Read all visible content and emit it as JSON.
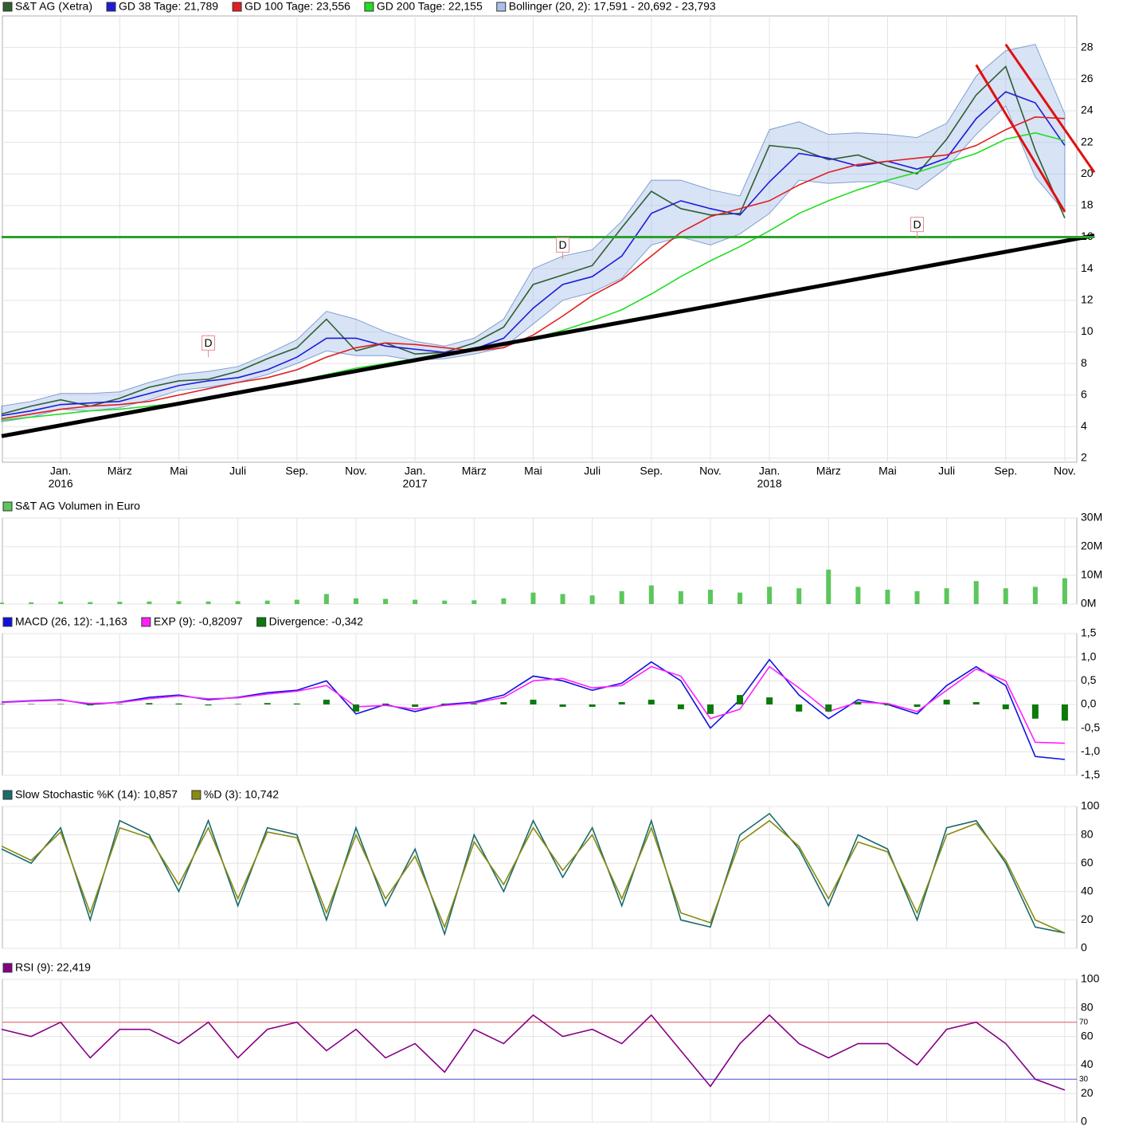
{
  "chart_data": [
    {
      "type": "line",
      "xlim": [
        "2015-11",
        "2018-12"
      ],
      "x": [
        "2015-11",
        "2015-12",
        "2016-01",
        "2016-02",
        "2016-03",
        "2016-04",
        "2016-05",
        "2016-06",
        "2016-07",
        "2016-08",
        "2016-09",
        "2016-10",
        "2016-11",
        "2016-12",
        "2017-01",
        "2017-02",
        "2017-03",
        "2017-04",
        "2017-05",
        "2017-06",
        "2017-07",
        "2017-08",
        "2017-09",
        "2017-10",
        "2017-11",
        "2017-12",
        "2018-01",
        "2018-02",
        "2018-03",
        "2018-04",
        "2018-05",
        "2018-06",
        "2018-07",
        "2018-08",
        "2018-09",
        "2018-10",
        "2018-11"
      ],
      "xticks": [
        {
          "value": "2016-01",
          "label": "Jan."
        },
        {
          "value": "2016-03",
          "label": "März"
        },
        {
          "value": "2016-05",
          "label": "Mai"
        },
        {
          "value": "2016-07",
          "label": "Juli"
        },
        {
          "value": "2016-09",
          "label": "Sep."
        },
        {
          "value": "2016-11",
          "label": "Nov."
        },
        {
          "value": "2017-01",
          "label": "Jan."
        },
        {
          "value": "2017-03",
          "label": "März"
        },
        {
          "value": "2017-05",
          "label": "Mai"
        },
        {
          "value": "2017-07",
          "label": "Juli"
        },
        {
          "value": "2017-09",
          "label": "Sep."
        },
        {
          "value": "2017-11",
          "label": "Nov."
        },
        {
          "value": "2018-01",
          "label": "Jan."
        },
        {
          "value": "2018-03",
          "label": "März"
        },
        {
          "value": "2018-05",
          "label": "Mai"
        },
        {
          "value": "2018-07",
          "label": "Juli"
        },
        {
          "value": "2018-09",
          "label": "Sep."
        },
        {
          "value": "2018-11",
          "label": "Nov."
        }
      ],
      "year_ticks": [
        {
          "value": "2016-01",
          "label": "2016"
        },
        {
          "value": "2017-01",
          "label": "2017"
        },
        {
          "value": "2018-01",
          "label": "2018"
        }
      ],
      "ylim": [
        1.75,
        30
      ],
      "yticks": [
        2,
        4,
        6,
        8,
        10,
        12,
        14,
        16,
        18,
        20,
        22,
        24,
        26,
        28
      ],
      "band": {
        "name": "Bollinger (20, 2): 17,591 - 20,692 - 23,793",
        "color": "#a9c1ea",
        "upper": [
          5.3,
          5.6,
          6.1,
          6.1,
          6.2,
          6.8,
          7.3,
          7.5,
          7.8,
          8.6,
          9.5,
          11.3,
          10.8,
          10.0,
          9.4,
          9.1,
          9.6,
          10.8,
          14.0,
          14.8,
          15.2,
          17.0,
          19.6,
          19.6,
          19.0,
          18.6,
          22.8,
          23.3,
          22.5,
          22.6,
          22.5,
          22.3,
          23.2,
          26.2,
          27.8,
          28.2,
          23.8
        ],
        "lower": [
          4.3,
          4.6,
          5.1,
          5.0,
          5.2,
          5.7,
          6.3,
          6.5,
          6.8,
          7.3,
          8.0,
          8.8,
          8.5,
          8.5,
          8.2,
          8.3,
          8.6,
          9.0,
          10.5,
          12.0,
          12.5,
          13.4,
          15.5,
          16.0,
          15.5,
          16.2,
          17.5,
          19.6,
          19.4,
          19.5,
          19.5,
          19.0,
          20.4,
          22.5,
          24.3,
          19.8,
          17.6
        ]
      },
      "series": [
        {
          "name": "S&T AG (Xetra)",
          "color": "#2f5f2f",
          "values": [
            4.8,
            5.3,
            5.7,
            5.3,
            5.8,
            6.5,
            6.9,
            7.0,
            7.5,
            8.3,
            9.0,
            10.8,
            8.8,
            9.3,
            8.6,
            8.7,
            9.3,
            10.3,
            13.0,
            13.6,
            14.2,
            16.6,
            18.9,
            17.8,
            17.4,
            17.5,
            21.8,
            21.6,
            20.9,
            21.2,
            20.5,
            20.0,
            22.2,
            25.0,
            26.8,
            21.5,
            17.2
          ]
        },
        {
          "name": "GD 38 Tage: 21,789",
          "color": "#1c1cd8",
          "values": [
            4.7,
            5.0,
            5.4,
            5.5,
            5.6,
            6.1,
            6.6,
            6.9,
            7.1,
            7.6,
            8.4,
            9.6,
            9.6,
            9.1,
            8.9,
            8.7,
            8.9,
            9.6,
            11.5,
            13.0,
            13.5,
            14.8,
            17.5,
            18.3,
            17.8,
            17.4,
            19.5,
            21.3,
            21.0,
            20.5,
            20.8,
            20.3,
            21.0,
            23.5,
            25.2,
            24.5,
            21.8
          ]
        },
        {
          "name": "GD 100 Tage: 23,556",
          "color": "#e02020",
          "values": [
            4.5,
            4.8,
            5.1,
            5.3,
            5.4,
            5.6,
            6.0,
            6.4,
            6.8,
            7.1,
            7.6,
            8.4,
            9.0,
            9.3,
            9.2,
            9.0,
            8.8,
            9.0,
            9.8,
            11.0,
            12.3,
            13.3,
            14.8,
            16.3,
            17.3,
            17.8,
            18.3,
            19.3,
            20.1,
            20.6,
            20.8,
            21.0,
            21.2,
            21.8,
            22.8,
            23.6,
            23.5
          ]
        },
        {
          "name": "GD 200 Tage: 22,155",
          "color": "#22dd22",
          "values": [
            4.4,
            4.6,
            4.8,
            5.0,
            5.1,
            5.3,
            5.5,
            5.8,
            6.1,
            6.5,
            6.9,
            7.3,
            7.7,
            8.0,
            8.3,
            8.6,
            8.9,
            9.2,
            9.6,
            10.1,
            10.7,
            11.4,
            12.4,
            13.5,
            14.5,
            15.4,
            16.4,
            17.5,
            18.3,
            19.0,
            19.6,
            20.1,
            20.7,
            21.3,
            22.2,
            22.6,
            22.1
          ]
        }
      ],
      "trendlines": [
        {
          "color": "#000000",
          "width": 5,
          "x": [
            "2015-11",
            "2018-12"
          ],
          "y": [
            3.4,
            16.1
          ]
        },
        {
          "color": "#2ca02c",
          "width": 3,
          "x": [
            "2015-11",
            "2018-12"
          ],
          "y": [
            16,
            16
          ]
        },
        {
          "color": "#e01010",
          "width": 3,
          "x": [
            "2018-09",
            "2018-12"
          ],
          "y": [
            28.2,
            20.1
          ]
        },
        {
          "color": "#e01010",
          "width": 3,
          "x": [
            "2018-08",
            "2018-11"
          ],
          "y": [
            26.9,
            17.6
          ]
        }
      ],
      "annotations": [
        {
          "x": "2016-06",
          "y": 9.3,
          "label": "D"
        },
        {
          "x": "2017-06",
          "y": 15.5,
          "label": "D"
        },
        {
          "x": "2018-06",
          "y": 16.8,
          "label": "D"
        }
      ]
    },
    {
      "type": "bar",
      "x": [
        "2015-11",
        "2015-12",
        "2016-01",
        "2016-02",
        "2016-03",
        "2016-04",
        "2016-05",
        "2016-06",
        "2016-07",
        "2016-08",
        "2016-09",
        "2016-10",
        "2016-11",
        "2016-12",
        "2017-01",
        "2017-02",
        "2017-03",
        "2017-04",
        "2017-05",
        "2017-06",
        "2017-07",
        "2017-08",
        "2017-09",
        "2017-10",
        "2017-11",
        "2017-12",
        "2018-01",
        "2018-02",
        "2018-03",
        "2018-04",
        "2018-05",
        "2018-06",
        "2018-07",
        "2018-08",
        "2018-09",
        "2018-10",
        "2018-11"
      ],
      "ylim": [
        0,
        30000000
      ],
      "yticks": [
        {
          "value": 0,
          "label": "0M"
        },
        {
          "value": 10000000,
          "label": "10M"
        },
        {
          "value": 20000000,
          "label": "20M"
        },
        {
          "value": 30000000,
          "label": "30M"
        }
      ],
      "series": [
        {
          "name": "S&T AG Volumen in Euro",
          "color": "#5cc65c",
          "values": [
            500000,
            600000,
            800000,
            700000,
            800000,
            900000,
            1000000,
            900000,
            1000000,
            1200000,
            1500000,
            3500000,
            2000000,
            1800000,
            1500000,
            1200000,
            1300000,
            2000000,
            4000000,
            3500000,
            3000000,
            4500000,
            6500000,
            4500000,
            5000000,
            4000000,
            6000000,
            5500000,
            12000000,
            6000000,
            5000000,
            4500000,
            5500000,
            8000000,
            5500000,
            6000000,
            9000000
          ]
        }
      ]
    },
    {
      "type": "line",
      "x": [
        "2015-11",
        "2015-12",
        "2016-01",
        "2016-02",
        "2016-03",
        "2016-04",
        "2016-05",
        "2016-06",
        "2016-07",
        "2016-08",
        "2016-09",
        "2016-10",
        "2016-11",
        "2016-12",
        "2017-01",
        "2017-02",
        "2017-03",
        "2017-04",
        "2017-05",
        "2017-06",
        "2017-07",
        "2017-08",
        "2017-09",
        "2017-10",
        "2017-11",
        "2017-12",
        "2018-01",
        "2018-02",
        "2018-03",
        "2018-04",
        "2018-05",
        "2018-06",
        "2018-07",
        "2018-08",
        "2018-09",
        "2018-10",
        "2018-11"
      ],
      "ylim": [
        -1.5,
        1.5
      ],
      "yticks": [
        {
          "value": -1.5,
          "label": "-1,5"
        },
        {
          "value": -1,
          "label": "-1,0"
        },
        {
          "value": -0.5,
          "label": "-0,5"
        },
        {
          "value": 0,
          "label": "0,0"
        },
        {
          "value": 0.5,
          "label": "0,5"
        },
        {
          "value": 1,
          "label": "1,0"
        },
        {
          "value": 1.5,
          "label": "1,5"
        }
      ],
      "series": [
        {
          "name": "MACD (26, 12): -1,163",
          "color": "#1010e0",
          "values": [
            0.05,
            0.08,
            0.1,
            0.0,
            0.05,
            0.15,
            0.2,
            0.1,
            0.15,
            0.25,
            0.3,
            0.5,
            -0.2,
            0.0,
            -0.15,
            0.0,
            0.05,
            0.2,
            0.6,
            0.5,
            0.3,
            0.45,
            0.9,
            0.5,
            -0.5,
            0.1,
            0.95,
            0.2,
            -0.3,
            0.1,
            0.0,
            -0.2,
            0.4,
            0.8,
            0.4,
            -1.1,
            -1.163
          ]
        },
        {
          "name": "EXP (9): -0,82097",
          "color": "#ff20ff",
          "values": [
            0.04,
            0.07,
            0.09,
            0.02,
            0.04,
            0.12,
            0.18,
            0.12,
            0.14,
            0.22,
            0.28,
            0.4,
            -0.05,
            -0.02,
            -0.1,
            -0.02,
            0.03,
            0.15,
            0.5,
            0.55,
            0.35,
            0.4,
            0.8,
            0.6,
            -0.3,
            -0.1,
            0.8,
            0.35,
            -0.15,
            0.05,
            0.02,
            -0.15,
            0.3,
            0.75,
            0.5,
            -0.8,
            -0.821
          ]
        },
        {
          "name": "Divergence: -0,342",
          "color": "#0a7a0a",
          "kind": "bar",
          "values": [
            0.01,
            0.01,
            0.01,
            -0.02,
            0.01,
            0.03,
            0.02,
            -0.02,
            0.01,
            0.03,
            0.02,
            0.1,
            -0.15,
            0.02,
            -0.05,
            0.02,
            0.02,
            0.05,
            0.1,
            -0.05,
            -0.05,
            0.05,
            0.1,
            -0.1,
            -0.2,
            0.2,
            0.15,
            -0.15,
            -0.15,
            0.05,
            -0.02,
            -0.05,
            0.1,
            0.05,
            -0.1,
            -0.3,
            -0.342
          ]
        }
      ]
    },
    {
      "type": "line",
      "x": [
        "2015-11",
        "2015-12",
        "2016-01",
        "2016-02",
        "2016-03",
        "2016-04",
        "2016-05",
        "2016-06",
        "2016-07",
        "2016-08",
        "2016-09",
        "2016-10",
        "2016-11",
        "2016-12",
        "2017-01",
        "2017-02",
        "2017-03",
        "2017-04",
        "2017-05",
        "2017-06",
        "2017-07",
        "2017-08",
        "2017-09",
        "2017-10",
        "2017-11",
        "2017-12",
        "2018-01",
        "2018-02",
        "2018-03",
        "2018-04",
        "2018-05",
        "2018-06",
        "2018-07",
        "2018-08",
        "2018-09",
        "2018-10",
        "2018-11"
      ],
      "ylim": [
        0,
        100
      ],
      "yticks": [
        0,
        20,
        40,
        60,
        80,
        100
      ],
      "series": [
        {
          "name": "Slow Stochastic %K (14): 10,857",
          "color": "#1a6b6b",
          "values": [
            70,
            60,
            85,
            20,
            90,
            80,
            40,
            90,
            30,
            85,
            80,
            20,
            85,
            30,
            70,
            10,
            80,
            40,
            90,
            50,
            85,
            30,
            90,
            20,
            15,
            80,
            95,
            70,
            30,
            80,
            70,
            20,
            85,
            90,
            60,
            15,
            10.857
          ]
        },
        {
          "name": "%D (3): 10,742",
          "color": "#8a8a10",
          "values": [
            72,
            62,
            82,
            25,
            85,
            78,
            45,
            85,
            35,
            82,
            78,
            25,
            80,
            35,
            65,
            15,
            75,
            45,
            85,
            55,
            80,
            35,
            85,
            25,
            18,
            75,
            90,
            72,
            35,
            75,
            68,
            25,
            80,
            88,
            62,
            20,
            10.742
          ]
        }
      ]
    },
    {
      "type": "line",
      "x": [
        "2015-11",
        "2015-12",
        "2016-01",
        "2016-02",
        "2016-03",
        "2016-04",
        "2016-05",
        "2016-06",
        "2016-07",
        "2016-08",
        "2016-09",
        "2016-10",
        "2016-11",
        "2016-12",
        "2017-01",
        "2017-02",
        "2017-03",
        "2017-04",
        "2017-05",
        "2017-06",
        "2017-07",
        "2017-08",
        "2017-09",
        "2017-10",
        "2017-11",
        "2017-12",
        "2018-01",
        "2018-02",
        "2018-03",
        "2018-04",
        "2018-05",
        "2018-06",
        "2018-07",
        "2018-08",
        "2018-09",
        "2018-10",
        "2018-11"
      ],
      "ylim": [
        0,
        100
      ],
      "yticks": [
        0,
        20,
        40,
        60,
        80,
        100
      ],
      "hlines": [
        {
          "value": 70,
          "color": "#e05050"
        },
        {
          "value": 30,
          "color": "#4a4ae0"
        }
      ],
      "series": [
        {
          "name": "RSI (9): 22,419",
          "color": "#850085",
          "values": [
            65,
            60,
            70,
            45,
            65,
            65,
            55,
            70,
            45,
            65,
            70,
            50,
            65,
            45,
            55,
            35,
            65,
            55,
            75,
            60,
            65,
            55,
            75,
            50,
            25,
            55,
            75,
            55,
            45,
            55,
            55,
            40,
            65,
            70,
            55,
            30,
            22.419
          ]
        }
      ]
    }
  ]
}
